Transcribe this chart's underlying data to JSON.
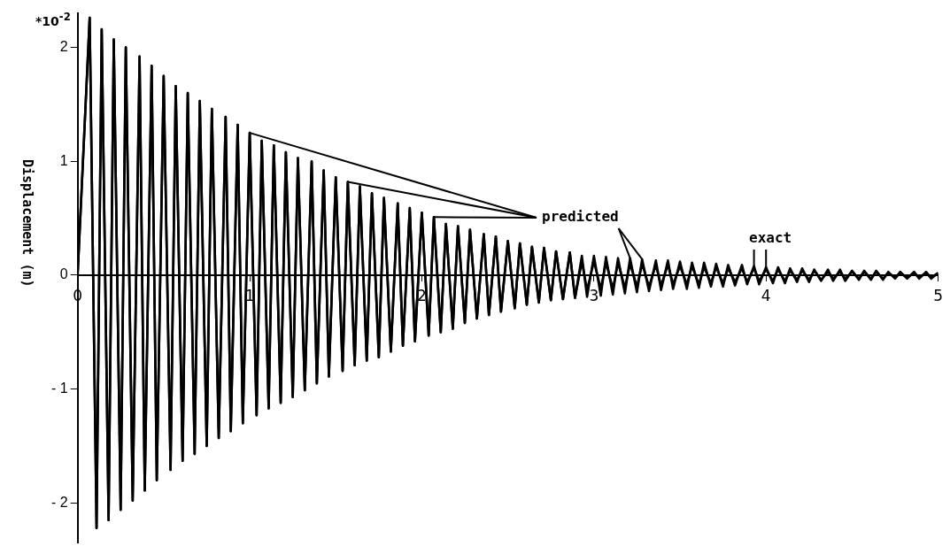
{
  "chart_data": {
    "type": "line",
    "ylabel": "Displacement (m)",
    "annotations": [
      "*10$^{-2}$"
    ],
    "x": [
      0,
      0.07,
      0.11,
      0.14,
      0.18,
      0.21,
      0.25,
      0.28,
      0.32,
      0.36,
      0.39,
      0.43,
      0.46,
      0.5,
      0.54,
      0.57,
      0.61,
      0.64,
      0.68,
      0.71,
      0.75,
      0.78,
      0.82,
      0.86,
      0.89,
      0.93,
      0.96,
      1.0,
      1.04,
      1.07,
      1.11,
      1.14,
      1.18,
      1.21,
      1.25,
      1.28,
      1.32,
      1.36,
      1.39,
      1.43,
      1.46,
      1.5,
      1.54,
      1.57,
      1.61,
      1.64,
      1.68,
      1.71,
      1.75,
      1.78,
      1.82,
      1.86,
      1.89,
      1.93,
      1.96,
      2.0,
      2.04,
      2.07,
      2.11,
      2.14,
      2.18,
      2.21,
      2.25,
      2.28,
      2.32,
      2.36,
      2.39,
      2.43,
      2.46,
      2.5,
      2.54,
      2.57,
      2.61,
      2.64,
      2.68,
      2.71,
      2.75,
      2.78,
      2.82,
      2.86,
      2.89,
      2.93,
      2.96,
      3.0,
      3.04,
      3.07,
      3.11,
      3.14,
      3.18,
      3.21,
      3.25,
      3.28,
      3.32,
      3.36,
      3.39,
      3.43,
      3.46,
      3.5,
      3.54,
      3.57,
      3.61,
      3.64,
      3.68,
      3.71,
      3.75,
      3.78,
      3.82,
      3.86,
      3.89,
      3.93,
      3.96,
      4.0,
      4.04,
      4.07,
      4.11,
      4.14,
      4.18,
      4.21,
      4.25,
      4.28,
      4.32,
      4.36,
      4.39,
      4.43,
      4.46,
      4.5,
      4.54,
      4.57,
      4.61,
      4.64,
      4.68,
      4.71,
      4.75,
      4.78,
      4.82,
      4.86,
      4.89,
      4.93,
      4.96,
      5.0
    ],
    "series": [
      {
        "name": "predicted",
        "color": "#000000",
        "values": [
          0,
          2.26,
          -2.22,
          2.16,
          -2.15,
          2.07,
          -2.06,
          2.0,
          -1.98,
          1.92,
          -1.89,
          1.84,
          -1.8,
          1.75,
          -1.71,
          1.66,
          -1.63,
          1.6,
          -1.57,
          1.53,
          -1.5,
          1.46,
          -1.43,
          1.39,
          -1.37,
          1.32,
          -1.3,
          1.25,
          -1.23,
          1.18,
          -1.17,
          1.14,
          -1.12,
          1.08,
          -1.07,
          1.03,
          -1.01,
          1.0,
          -0.95,
          0.92,
          -0.89,
          0.86,
          -0.84,
          0.82,
          -0.79,
          0.78,
          -0.75,
          0.72,
          -0.72,
          0.68,
          -0.67,
          0.63,
          -0.62,
          0.59,
          -0.58,
          0.55,
          -0.53,
          0.51,
          -0.5,
          0.45,
          -0.47,
          0.43,
          -0.42,
          0.4,
          -0.38,
          0.36,
          -0.35,
          0.34,
          -0.32,
          0.3,
          -0.29,
          0.28,
          -0.26,
          0.25,
          -0.24,
          0.24,
          -0.22,
          0.21,
          -0.21,
          0.2,
          -0.2,
          0.17,
          -0.19,
          0.17,
          -0.18,
          0.16,
          -0.17,
          0.15,
          -0.16,
          0.15,
          -0.15,
          0.14,
          -0.14,
          0.13,
          -0.13,
          0.13,
          -0.12,
          0.12,
          -0.12,
          0.11,
          -0.11,
          0.11,
          -0.1,
          0.1,
          -0.1,
          0.09,
          -0.09,
          0.09,
          -0.08,
          0.08,
          -0.08,
          0.07,
          -0.07,
          0.07,
          -0.07,
          0.06,
          -0.06,
          0.06,
          -0.06,
          0.05,
          -0.05,
          0.05,
          -0.05,
          0.05,
          -0.05,
          0.04,
          -0.04,
          0.04,
          -0.04,
          0.04,
          -0.04,
          0.03,
          -0.03,
          0.03,
          -0.03,
          0.03,
          -0.03,
          0.03,
          -0.03,
          0.02
        ]
      },
      {
        "name": "exact",
        "color": "#000000",
        "values": [
          0,
          2.26,
          -2.22,
          2.16,
          -2.15,
          2.07,
          -2.06,
          2.0,
          -1.98,
          1.92,
          -1.89,
          1.84,
          -1.8,
          1.75,
          -1.71,
          1.66,
          -1.63,
          1.6,
          -1.57,
          1.53,
          -1.5,
          1.46,
          -1.43,
          1.39,
          -1.37,
          1.32,
          -1.3,
          1.25,
          -1.23,
          1.18,
          -1.17,
          1.14,
          -1.12,
          1.08,
          -1.07,
          1.03,
          -1.01,
          1.0,
          -0.95,
          0.92,
          -0.89,
          0.86,
          -0.84,
          0.82,
          -0.79,
          0.78,
          -0.75,
          0.72,
          -0.72,
          0.68,
          -0.67,
          0.63,
          -0.62,
          0.59,
          -0.58,
          0.55,
          -0.53,
          0.51,
          -0.5,
          0.45,
          -0.47,
          0.43,
          -0.42,
          0.4,
          -0.38,
          0.36,
          -0.35,
          0.34,
          -0.32,
          0.3,
          -0.29,
          0.28,
          -0.26,
          0.25,
          -0.24,
          0.24,
          -0.22,
          0.21,
          -0.21,
          0.2,
          -0.2,
          0.12,
          -0.13,
          0.12,
          -0.12,
          0.11,
          -0.12,
          0.11,
          -0.11,
          0.1,
          -0.1,
          0.1,
          -0.1,
          0.09,
          -0.09,
          0.09,
          -0.08,
          0.08,
          -0.08,
          0.08,
          -0.08,
          0.07,
          -0.07,
          0.07,
          -0.07,
          0.06,
          -0.06,
          0.06,
          -0.06,
          0.06,
          -0.05,
          0.05,
          -0.05,
          0.05,
          -0.05,
          0.04,
          -0.04,
          0.04,
          -0.04,
          0.04,
          -0.04,
          0.03,
          -0.03,
          0.03,
          -0.03,
          0.03,
          -0.03,
          0.03,
          -0.03,
          0.03,
          -0.03,
          0.02,
          -0.02,
          0.02,
          -0.02,
          0.02,
          -0.02,
          0.02,
          -0.02,
          0.02
        ]
      }
    ],
    "xlim": [
      0,
      5
    ],
    "xticks": [
      0,
      1,
      2,
      3,
      4,
      5
    ],
    "ylim": [
      -2.35,
      2.3
    ],
    "yticks": [
      {
        "value": -2,
        "label": "- 2"
      },
      {
        "value": -1,
        "label": "- 1"
      },
      0,
      1,
      2
    ],
    "grid": false,
    "legend": false,
    "marker": "none",
    "line_style": "solid"
  }
}
